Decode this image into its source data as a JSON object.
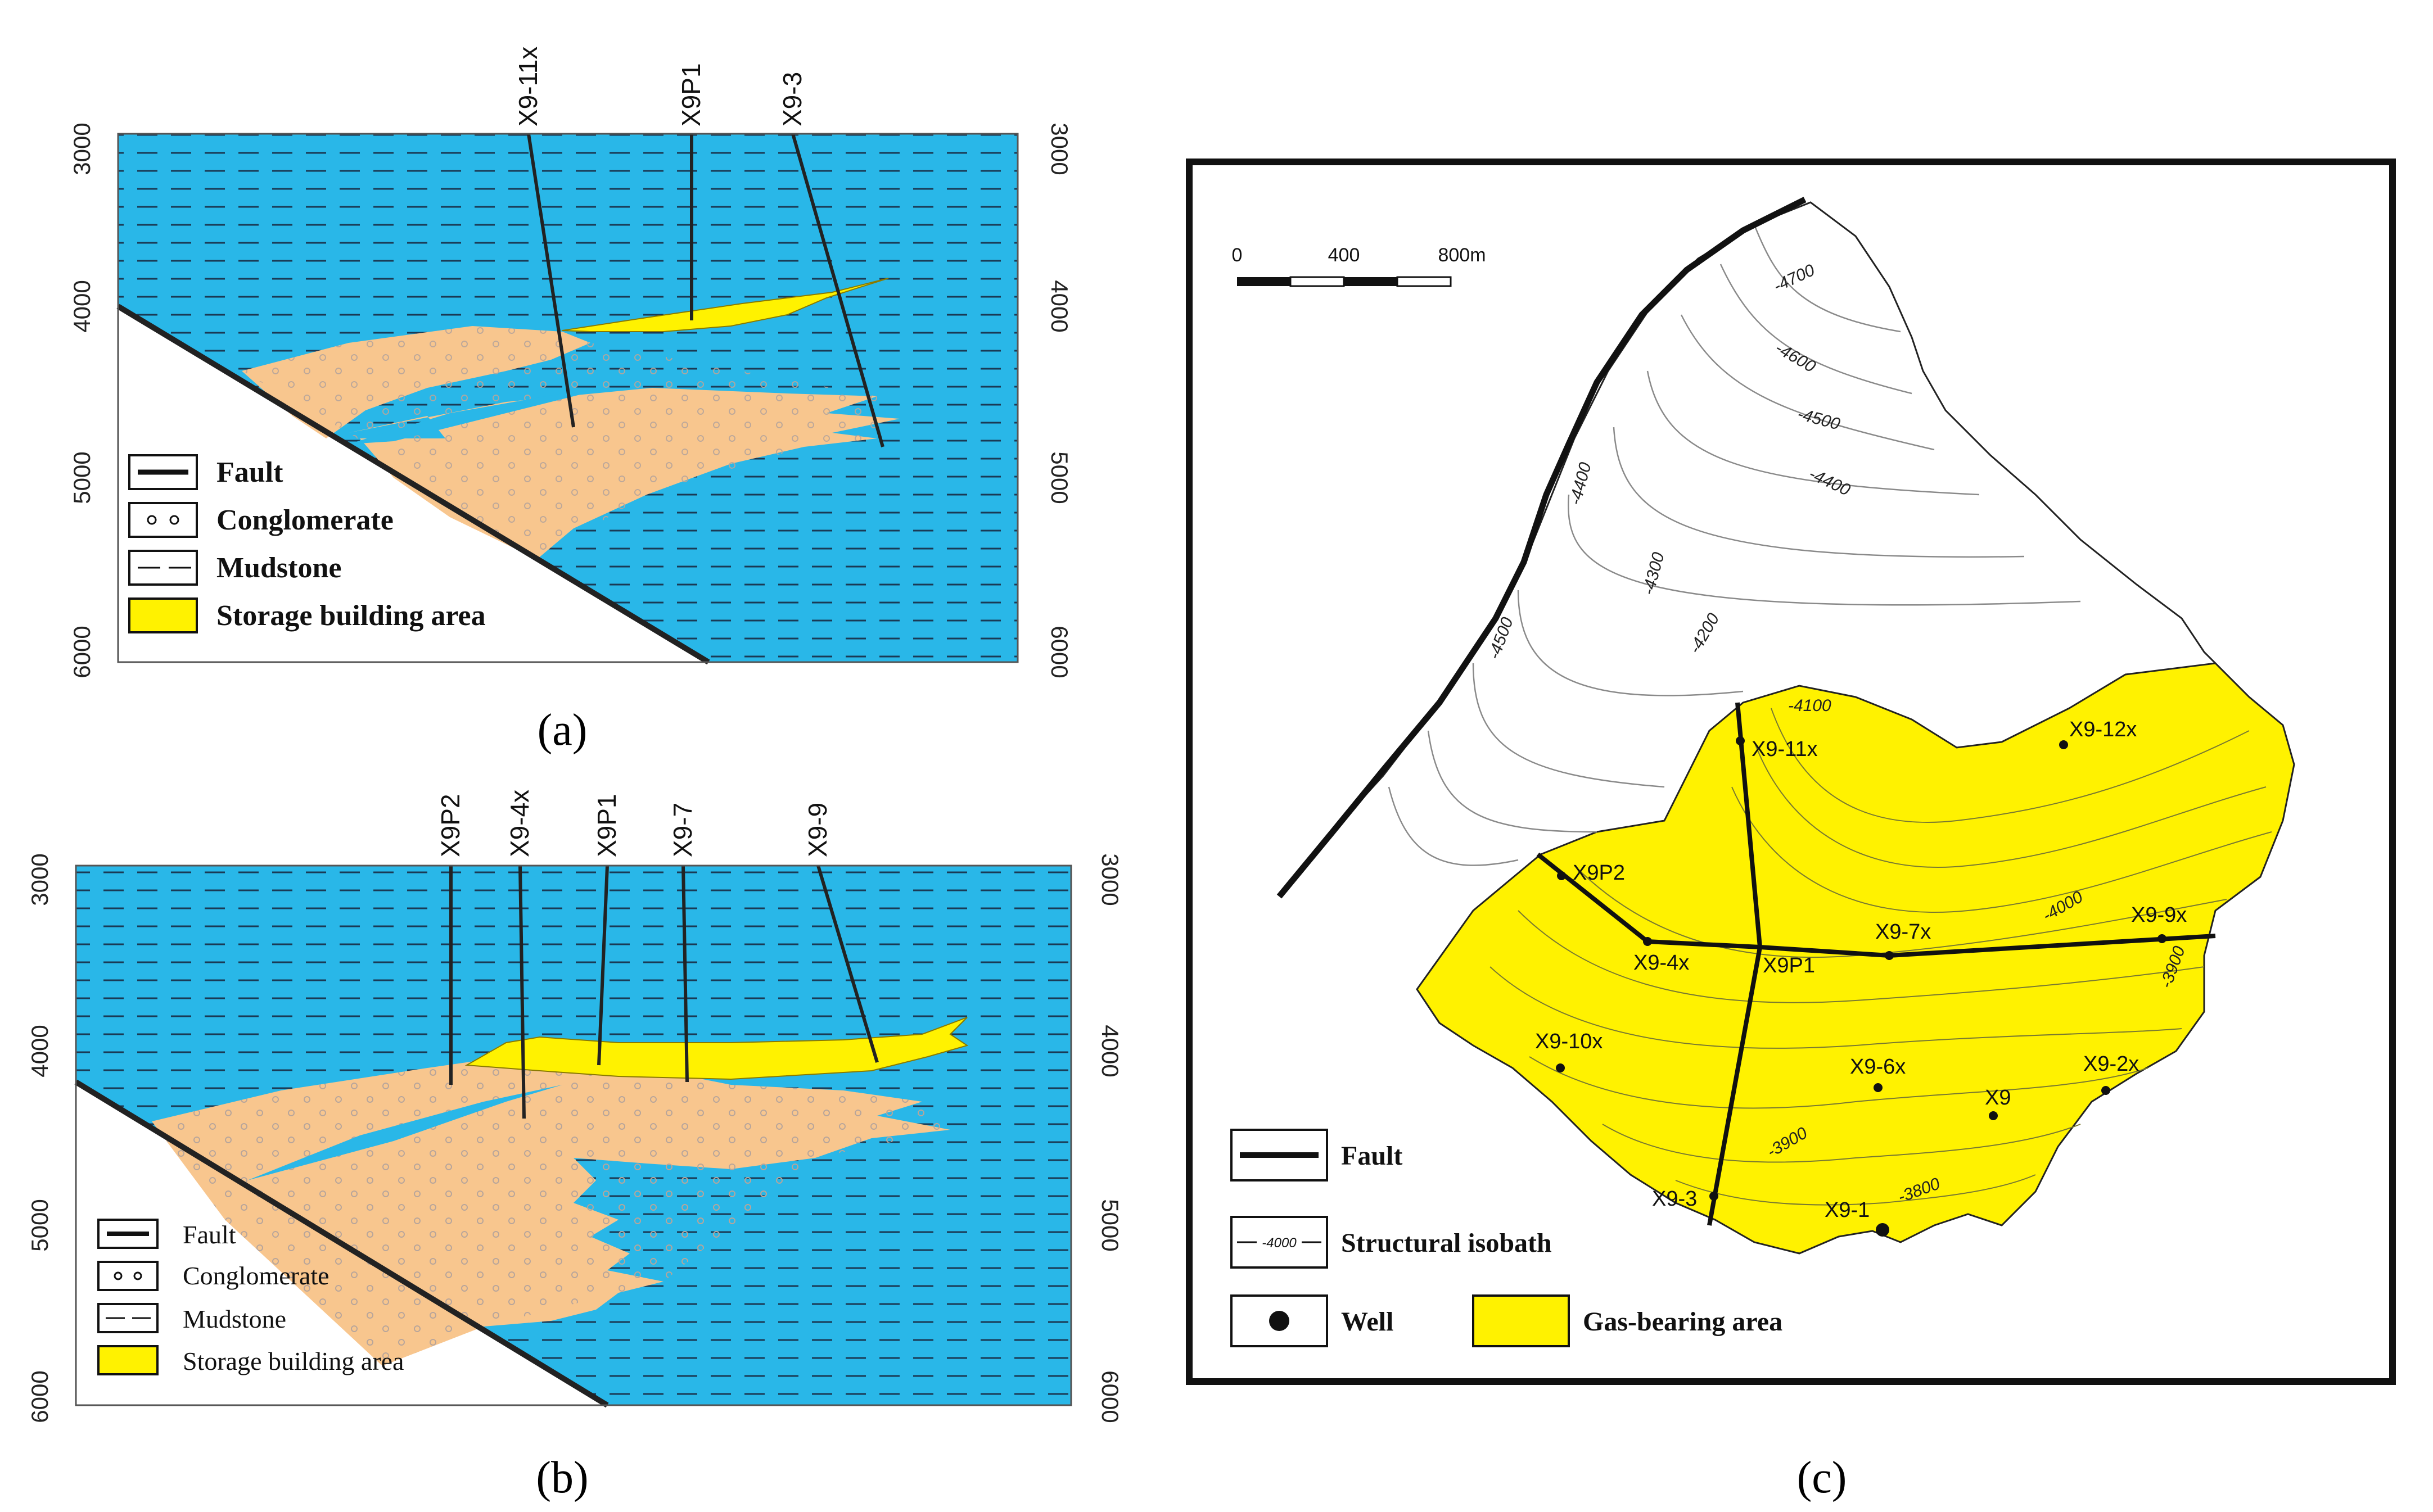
{
  "panel_a": {
    "caption": "(a)",
    "depth_ticks": [
      "3000",
      "4000",
      "5000",
      "6000"
    ],
    "wells": [
      "X9-11x",
      "X9P1",
      "X9-3"
    ],
    "legend": [
      {
        "key": "fault",
        "label": "Fault"
      },
      {
        "key": "conglomerate",
        "label": "Conglomerate"
      },
      {
        "key": "mudstone",
        "label": "Mudstone"
      },
      {
        "key": "storage",
        "label": "Storage building  area"
      }
    ]
  },
  "panel_b": {
    "caption": "(b)",
    "depth_ticks": [
      "3000",
      "4000",
      "5000",
      "6000"
    ],
    "wells": [
      "X9P2",
      "X9-4x",
      "X9P1",
      "X9-7",
      "X9-9"
    ],
    "legend": [
      {
        "key": "fault",
        "label": "Fault"
      },
      {
        "key": "conglomerate",
        "label": "Conglomerate"
      },
      {
        "key": "mudstone",
        "label": "Mudstone"
      },
      {
        "key": "storage",
        "label": "Storage building  area"
      }
    ]
  },
  "panel_c": {
    "caption": "(c)",
    "scale": {
      "labels": [
        "0",
        "400",
        "800m"
      ]
    },
    "isobath_labels": [
      "-4700",
      "-4600",
      "-4500",
      "-4400",
      "-4400",
      "-4300",
      "-4200",
      "-4500",
      "-4100",
      "-4000",
      "-3900",
      "-3900",
      "-3800"
    ],
    "wells": [
      "X9-11x",
      "X9-12x",
      "X9P2",
      "X9-4x",
      "X9P1",
      "X9-7x",
      "X9-9x",
      "X9-10x",
      "X9-6x",
      "X9",
      "X9-2x",
      "X9-3",
      "X9-1"
    ],
    "legend": {
      "fault": "Fault",
      "isobath": "Structural  isobath",
      "isobath_sample": "-4000",
      "well": "Well",
      "gas": "Gas-bearing area"
    }
  },
  "colors": {
    "water_blue": "#29b7e8",
    "conglomerate_tan": "#f8c68e",
    "storage_yellow": "#fff200",
    "fault_black": "#222222"
  }
}
